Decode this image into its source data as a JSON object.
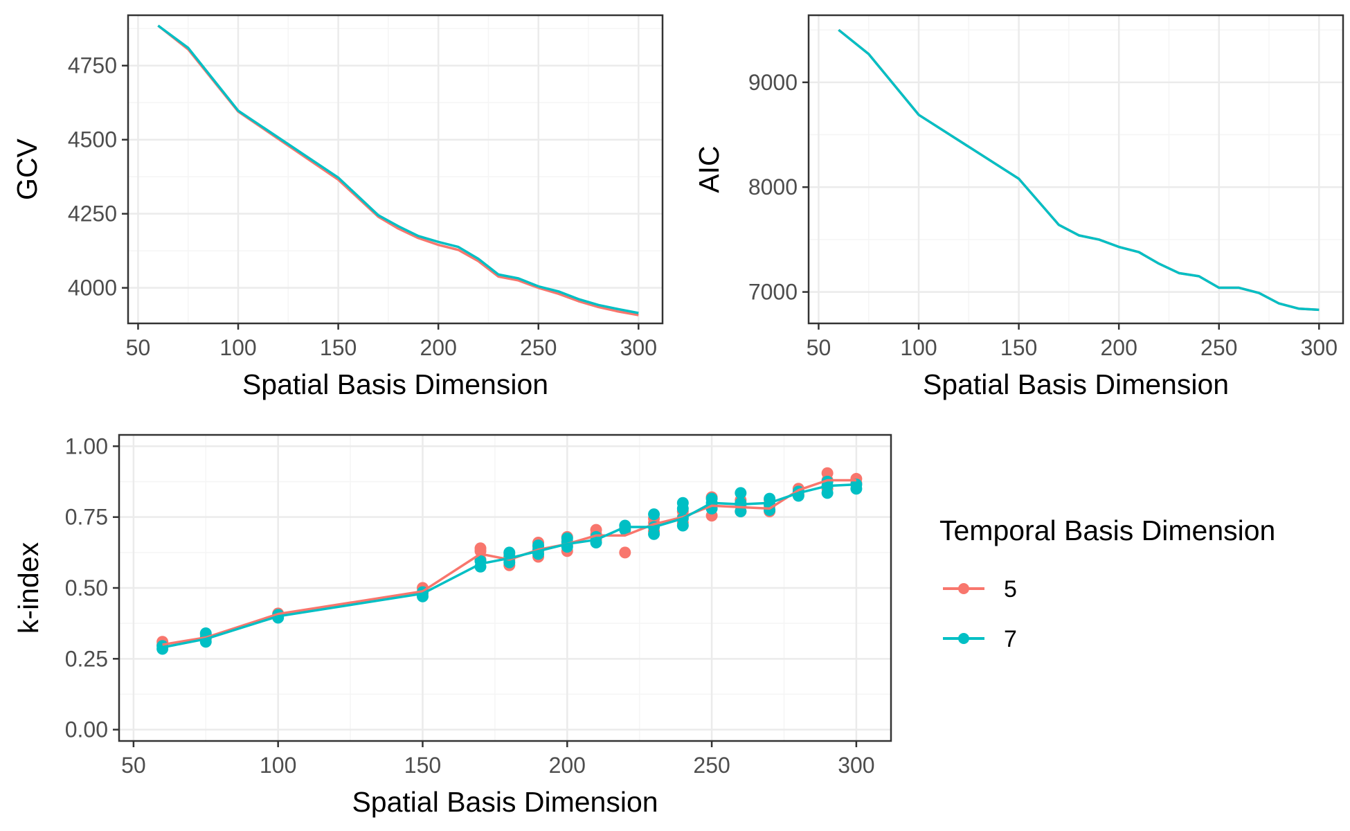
{
  "chart_data": [
    {
      "id": "gcv",
      "type": "line",
      "xlabel": "Spatial Basis Dimension",
      "ylabel": "GCV",
      "xlim": [
        45,
        312
      ],
      "ylim": [
        3880,
        4920
      ],
      "xticks": [
        50,
        100,
        150,
        200,
        250,
        300
      ],
      "yticks": [
        4000,
        4250,
        4500,
        4750
      ],
      "grid": true,
      "x": [
        60,
        75,
        100,
        150,
        170,
        180,
        190,
        200,
        210,
        220,
        230,
        240,
        250,
        260,
        270,
        280,
        290,
        300
      ],
      "series": [
        {
          "name": "5",
          "values": [
            4885,
            4805,
            4595,
            4365,
            4240,
            4200,
            4168,
            4145,
            4128,
            4090,
            4038,
            4025,
            4000,
            3980,
            3955,
            3935,
            3920,
            3908
          ]
        },
        {
          "name": "7",
          "values": [
            4885,
            4810,
            4598,
            4372,
            4245,
            4208,
            4175,
            4155,
            4138,
            4098,
            4045,
            4032,
            4005,
            3988,
            3962,
            3942,
            3928,
            3915
          ]
        }
      ]
    },
    {
      "id": "aic",
      "type": "line",
      "xlabel": "Spatial Basis Dimension",
      "ylabel": "AIC",
      "xlim": [
        45,
        312
      ],
      "ylim": [
        6700,
        9640
      ],
      "xticks": [
        50,
        100,
        150,
        200,
        250,
        300
      ],
      "yticks": [
        7000,
        8000,
        9000
      ],
      "grid": true,
      "x": [
        60,
        75,
        100,
        150,
        170,
        180,
        190,
        200,
        210,
        220,
        230,
        240,
        250,
        260,
        270,
        280,
        290,
        300
      ],
      "series": [
        {
          "name": "5",
          "values": [
            9500,
            9270,
            8690,
            8080,
            7640,
            7540,
            7500,
            7430,
            7380,
            7270,
            7180,
            7150,
            7040,
            7040,
            6990,
            6890,
            6840,
            6830
          ]
        },
        {
          "name": "7",
          "values": [
            9500,
            9270,
            8690,
            8080,
            7640,
            7540,
            7500,
            7430,
            7380,
            7270,
            7180,
            7150,
            7040,
            7040,
            6990,
            6890,
            6840,
            6830
          ]
        }
      ]
    },
    {
      "id": "kindex",
      "type": "line",
      "xlabel": "Spatial Basis Dimension",
      "ylabel": "k-index",
      "xlim": [
        45,
        312
      ],
      "ylim": [
        -0.04,
        1.04
      ],
      "xticks": [
        50,
        100,
        150,
        200,
        250,
        300
      ],
      "yticks": [
        0.0,
        0.25,
        0.5,
        0.75,
        1.0
      ],
      "ytick_labels": [
        "0.00",
        "0.25",
        "0.50",
        "0.75",
        "1.00"
      ],
      "grid": true,
      "x": [
        60,
        75,
        100,
        150,
        170,
        180,
        190,
        200,
        210,
        220,
        230,
        240,
        250,
        260,
        270,
        280,
        290,
        300
      ],
      "series": [
        {
          "name": "5",
          "values": [
            0.3,
            0.325,
            0.408,
            0.488,
            0.62,
            0.6,
            0.635,
            0.655,
            0.685,
            0.685,
            0.725,
            0.75,
            0.79,
            0.785,
            0.78,
            0.845,
            0.88,
            0.88
          ],
          "points": [
            [
              60,
              0.3
            ],
            [
              60,
              0.31
            ],
            [
              75,
              0.32
            ],
            [
              75,
              0.335
            ],
            [
              100,
              0.4
            ],
            [
              100,
              0.41
            ],
            [
              150,
              0.48
            ],
            [
              150,
              0.5
            ],
            [
              170,
              0.6
            ],
            [
              170,
              0.63
            ],
            [
              170,
              0.64
            ],
            [
              180,
              0.58
            ],
            [
              180,
              0.6
            ],
            [
              180,
              0.62
            ],
            [
              190,
              0.61
            ],
            [
              190,
              0.63
            ],
            [
              190,
              0.645
            ],
            [
              190,
              0.66
            ],
            [
              200,
              0.63
            ],
            [
              200,
              0.65
            ],
            [
              200,
              0.665
            ],
            [
              200,
              0.68
            ],
            [
              210,
              0.67
            ],
            [
              210,
              0.69
            ],
            [
              210,
              0.705
            ],
            [
              220,
              0.625
            ],
            [
              220,
              0.71
            ],
            [
              230,
              0.7
            ],
            [
              230,
              0.73
            ],
            [
              230,
              0.745
            ],
            [
              240,
              0.73
            ],
            [
              240,
              0.75
            ],
            [
              240,
              0.77
            ],
            [
              250,
              0.755
            ],
            [
              250,
              0.79
            ],
            [
              250,
              0.82
            ],
            [
              260,
              0.77
            ],
            [
              260,
              0.79
            ],
            [
              260,
              0.81
            ],
            [
              270,
              0.77
            ],
            [
              270,
              0.79
            ],
            [
              270,
              0.81
            ],
            [
              280,
              0.83
            ],
            [
              280,
              0.85
            ],
            [
              290,
              0.85
            ],
            [
              290,
              0.88
            ],
            [
              290,
              0.905
            ],
            [
              300,
              0.87
            ],
            [
              300,
              0.885
            ]
          ]
        },
        {
          "name": "7",
          "values": [
            0.29,
            0.32,
            0.4,
            0.48,
            0.585,
            0.605,
            0.63,
            0.655,
            0.67,
            0.715,
            0.715,
            0.745,
            0.8,
            0.795,
            0.8,
            0.835,
            0.86,
            0.865
          ],
          "points": [
            [
              60,
              0.285
            ],
            [
              60,
              0.295
            ],
            [
              75,
              0.31
            ],
            [
              75,
              0.325
            ],
            [
              75,
              0.34
            ],
            [
              100,
              0.395
            ],
            [
              100,
              0.405
            ],
            [
              150,
              0.47
            ],
            [
              150,
              0.485
            ],
            [
              170,
              0.575
            ],
            [
              170,
              0.595
            ],
            [
              180,
              0.59
            ],
            [
              180,
              0.61
            ],
            [
              180,
              0.625
            ],
            [
              190,
              0.62
            ],
            [
              190,
              0.635
            ],
            [
              190,
              0.65
            ],
            [
              200,
              0.645
            ],
            [
              200,
              0.66
            ],
            [
              200,
              0.675
            ],
            [
              210,
              0.66
            ],
            [
              210,
              0.68
            ],
            [
              220,
              0.705
            ],
            [
              220,
              0.72
            ],
            [
              230,
              0.69
            ],
            [
              230,
              0.715
            ],
            [
              230,
              0.76
            ],
            [
              240,
              0.72
            ],
            [
              240,
              0.745
            ],
            [
              240,
              0.78
            ],
            [
              240,
              0.8
            ],
            [
              250,
              0.78
            ],
            [
              250,
              0.8
            ],
            [
              250,
              0.815
            ],
            [
              260,
              0.77
            ],
            [
              260,
              0.8
            ],
            [
              260,
              0.835
            ],
            [
              270,
              0.775
            ],
            [
              270,
              0.795
            ],
            [
              270,
              0.815
            ],
            [
              280,
              0.825
            ],
            [
              280,
              0.84
            ],
            [
              290,
              0.835
            ],
            [
              290,
              0.86
            ],
            [
              290,
              0.875
            ],
            [
              300,
              0.85
            ],
            [
              300,
              0.865
            ]
          ]
        }
      ]
    }
  ],
  "legend": {
    "title": "Temporal Basis Dimension",
    "entries": [
      {
        "label": "5",
        "color": "#F8766D"
      },
      {
        "label": "7",
        "color": "#00BFC4"
      }
    ],
    "placement": "right"
  },
  "colors": {
    "5": "#F8766D",
    "7": "#00BFC4",
    "grid_major": "#EBEBEB",
    "grid_minor": "#F5F5F5",
    "frame": "#333333"
  }
}
